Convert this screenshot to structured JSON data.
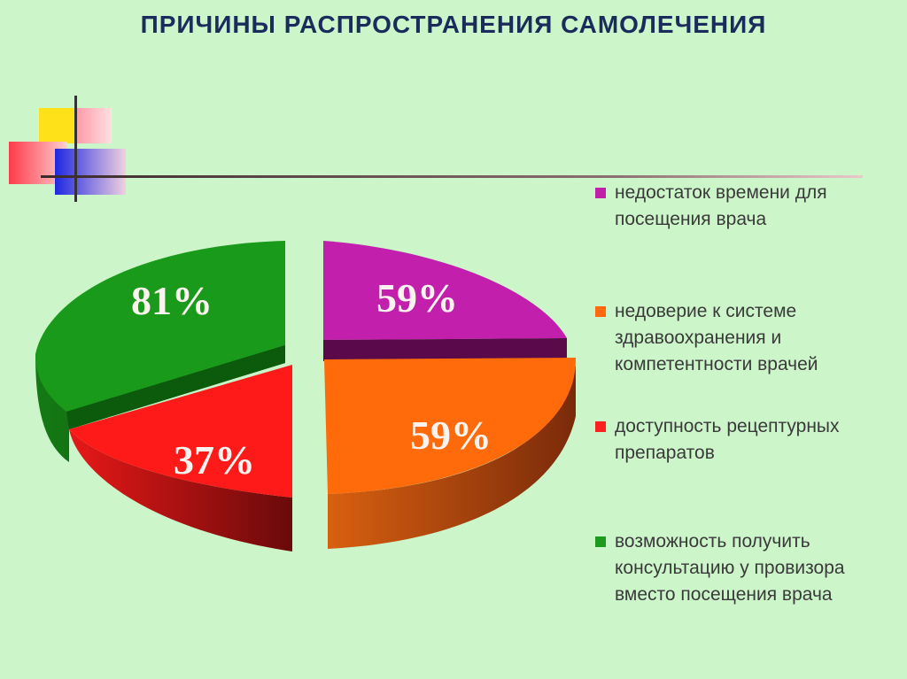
{
  "title": "ПРИЧИНЫ РАСПРОСТРАНЕНИЯ САМОЛЕЧЕНИЯ",
  "colors": {
    "background": "#ccf5c9",
    "title": "#1a2c5c",
    "deco_yellow": "#ffe11a",
    "deco_pink": "#ffb0b0",
    "deco_blue": "#2a34e0",
    "deco_red": "#ff5a5a"
  },
  "chart_data": {
    "type": "pie",
    "title": "",
    "slices": [
      {
        "label": "недостаток времени для посещения врача",
        "value": 59,
        "display": "59%",
        "color": "#c020a8"
      },
      {
        "label": "недоверие к системе здравоохранения и компетентности врачей",
        "value": 59,
        "display": "59%",
        "color": "#ff6a10"
      },
      {
        "label": "доступность рецептурных препаратов",
        "value": 37,
        "display": "37%",
        "color": "#ff2020"
      },
      {
        "label": "возможность получить консультацию у провизора вместо посещения врача",
        "value": 81,
        "display": "81%",
        "color": "#1e9a1e"
      }
    ],
    "legend": "right",
    "style": "3d-exploded"
  }
}
